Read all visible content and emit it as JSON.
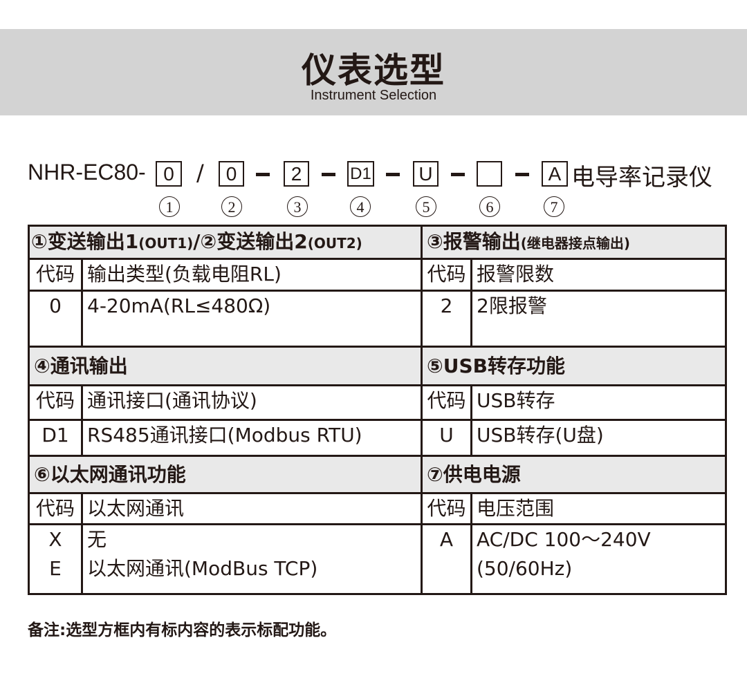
{
  "banner": {
    "title": "仪表选型",
    "subtitle": "Instrument Selection",
    "color": "#d3d3d3"
  },
  "model": {
    "prefix": "NHR-EC80-",
    "slash": "/",
    "codes": [
      "0",
      "0",
      "2",
      "D1",
      "U",
      "",
      "A"
    ],
    "suffix": "电导率记录仪",
    "indices": [
      "①",
      "②",
      "③",
      "④",
      "⑤",
      "⑥",
      "⑦"
    ]
  },
  "sections": {
    "s1": {
      "title": "①变送输出1",
      "title_small": "(OUT1)",
      "title2": "/②变送输出2",
      "title2_small": "(OUT2)",
      "col_code": "代码",
      "col_desc": "输出类型(负载电阻RL)",
      "rows": [
        {
          "code": "0",
          "desc": "4-20mA(RL≤480Ω)"
        }
      ]
    },
    "s3": {
      "title": "③报警输出",
      "title_small": "(继电器接点输出)",
      "col_code": "代码",
      "col_desc": "报警限数",
      "rows": [
        {
          "code": "2",
          "desc": "2限报警"
        }
      ]
    },
    "s4": {
      "title": "④通讯输出",
      "col_code": "代码",
      "col_desc": "通讯接口(通讯协议)",
      "rows": [
        {
          "code": "D1",
          "desc": "RS485通讯接口(Modbus RTU)"
        }
      ]
    },
    "s5": {
      "title": "⑤USB转存功能",
      "col_code": "代码",
      "col_desc": "USB转存",
      "rows": [
        {
          "code": "U",
          "desc": "USB转存(U盘)"
        }
      ]
    },
    "s6": {
      "title": "⑥以太网通讯功能",
      "col_code": "代码",
      "col_desc": "以太网通讯",
      "rows": [
        {
          "code": "X",
          "desc": "无"
        },
        {
          "code": "E",
          "desc": "以太网通讯(ModBus TCP)"
        }
      ]
    },
    "s7": {
      "title": "⑦供电电源",
      "col_code": "代码",
      "col_desc": "电压范围",
      "rows": [
        {
          "code": "A",
          "desc": "AC/DC 100～240V"
        },
        {
          "code": "",
          "desc": "(50/60Hz)"
        }
      ]
    }
  },
  "note": "备注:选型方框内有标内容的表示标配功能。"
}
